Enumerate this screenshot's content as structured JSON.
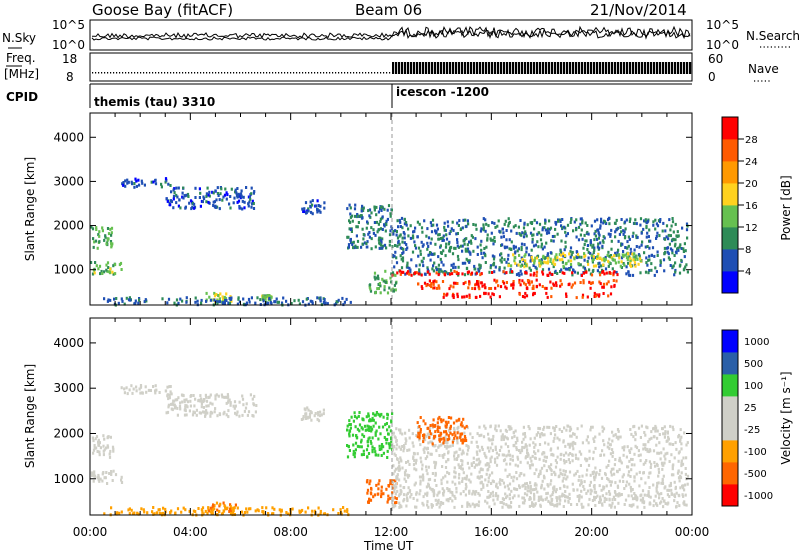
{
  "header": {
    "station": "Goose Bay (fitACF)",
    "beam": "Beam 06",
    "date": "21/Nov/2014"
  },
  "top_panels": {
    "nsky": {
      "label": "N.Sky",
      "ticks": [
        "10^5",
        "10^0"
      ],
      "right_label": "N.Search",
      "right_ticks": [
        "10^5",
        "10^0"
      ]
    },
    "freq": {
      "label_1": "Freq.",
      "label_2": "[MHz]",
      "ticks": [
        "18",
        "8"
      ],
      "right_label": "Nave",
      "right_ticks": [
        "60",
        "0"
      ]
    },
    "cpid": {
      "label": "CPID",
      "modes": [
        "themis (tau) 3310",
        "icescon -1200"
      ],
      "mode_change_hour": 12.0
    }
  },
  "colors": {
    "power_scale": [
      "#0000ff",
      "#1f4fb4",
      "#2e8b57",
      "#66c050",
      "#ffd21f",
      "#ff9900",
      "#ff5a00",
      "#ff0000"
    ],
    "velocity_scale": [
      "#ff0000",
      "#ff6600",
      "#ffa000",
      "#d0d0c8",
      "#d0d0c8",
      "#33cc33",
      "#2a5fa8",
      "#0000ff"
    ]
  },
  "chart_data": [
    {
      "type": "heatmap",
      "title": "",
      "xlabel": "Time UT",
      "ylabel": "Slant Range [km]",
      "xlim": [
        0,
        24
      ],
      "ylim": [
        200,
        4550
      ],
      "xticks": [
        "00:00",
        "04:00",
        "08:00",
        "12:00",
        "16:00",
        "20:00",
        "00:00"
      ],
      "yticks": [
        "1000",
        "2000",
        "3000",
        "4000"
      ],
      "colorbar": {
        "label": "Power [dB]",
        "range": [
          0,
          32
        ],
        "ticks": [
          "4",
          "8",
          "12",
          "16",
          "20",
          "24",
          "28"
        ]
      },
      "regions": [
        {
          "t0": 0.0,
          "t1": 0.9,
          "r0": 1500,
          "r1": 2000,
          "value": 12
        },
        {
          "t0": 0.0,
          "t1": 1.3,
          "r0": 900,
          "r1": 1200,
          "value": 14
        },
        {
          "t0": 1.2,
          "t1": 3.3,
          "r0": 2900,
          "r1": 3100,
          "value": 6
        },
        {
          "t0": 3.0,
          "t1": 6.6,
          "r0": 2400,
          "r1": 2900,
          "value": 6
        },
        {
          "t0": 8.4,
          "t1": 9.3,
          "r0": 2300,
          "r1": 2600,
          "value": 6
        },
        {
          "t0": 4.6,
          "t1": 5.8,
          "r0": 300,
          "r1": 500,
          "value": 16
        },
        {
          "t0": 6.8,
          "t1": 7.2,
          "r0": 350,
          "r1": 450,
          "value": 14
        },
        {
          "t0": 0.5,
          "t1": 10.4,
          "r0": 230,
          "r1": 400,
          "value": 7
        },
        {
          "t0": 10.2,
          "t1": 12.0,
          "r0": 1500,
          "r1": 2500,
          "value": 8
        },
        {
          "t0": 11.0,
          "t1": 12.2,
          "r0": 500,
          "r1": 1000,
          "value": 12
        },
        {
          "t0": 12.0,
          "t1": 23.8,
          "r0": 900,
          "r1": 2200,
          "value": 8
        },
        {
          "t0": 12.0,
          "t1": 21.0,
          "r0": 900,
          "r1": 1000,
          "value": 30
        },
        {
          "t0": 13.0,
          "t1": 21.0,
          "r0": 600,
          "r1": 800,
          "value": 28
        },
        {
          "t0": 14.0,
          "t1": 20.8,
          "r0": 400,
          "r1": 500,
          "value": 30
        },
        {
          "t0": 16.5,
          "t1": 22.0,
          "r0": 1100,
          "r1": 1400,
          "value": 16
        }
      ]
    },
    {
      "type": "heatmap",
      "title": "",
      "xlabel": "Time UT",
      "ylabel": "Slant Range [km]",
      "xlim": [
        0,
        24
      ],
      "ylim": [
        200,
        4550
      ],
      "xticks": [
        "00:00",
        "04:00",
        "08:00",
        "12:00",
        "16:00",
        "20:00",
        "00:00"
      ],
      "yticks": [
        "1000",
        "2000",
        "3000",
        "4000"
      ],
      "colorbar": {
        "label": "Velocity [m s⁻¹]",
        "ticks": [
          "1000",
          "500",
          "100",
          "25",
          "-25",
          "-100",
          "-500",
          "-1000"
        ]
      },
      "regions": [
        {
          "t0": 0.0,
          "t1": 0.9,
          "r0": 1500,
          "r1": 2000,
          "value": 0
        },
        {
          "t0": 0.0,
          "t1": 1.3,
          "r0": 900,
          "r1": 1200,
          "value": 0
        },
        {
          "t0": 1.2,
          "t1": 3.3,
          "r0": 2900,
          "r1": 3100,
          "value": 0
        },
        {
          "t0": 3.0,
          "t1": 6.6,
          "r0": 2400,
          "r1": 2900,
          "value": 0
        },
        {
          "t0": 8.4,
          "t1": 9.3,
          "r0": 2300,
          "r1": 2600,
          "value": 0
        },
        {
          "t0": 4.6,
          "t1": 5.8,
          "r0": 300,
          "r1": 500,
          "value": -100
        },
        {
          "t0": 0.5,
          "t1": 10.4,
          "r0": 230,
          "r1": 400,
          "value": -80
        },
        {
          "t0": 10.2,
          "t1": 12.0,
          "r0": 1500,
          "r1": 2500,
          "value": 50
        },
        {
          "t0": 11.0,
          "t1": 12.2,
          "r0": 500,
          "r1": 1000,
          "value": -150
        },
        {
          "t0": 12.0,
          "t1": 23.8,
          "r0": 900,
          "r1": 2200,
          "value": 0
        },
        {
          "t0": 13.0,
          "t1": 15.0,
          "r0": 1800,
          "r1": 2400,
          "value": -200
        },
        {
          "t0": 12.0,
          "t1": 23.8,
          "r0": 400,
          "r1": 900,
          "value": 10
        }
      ]
    }
  ]
}
